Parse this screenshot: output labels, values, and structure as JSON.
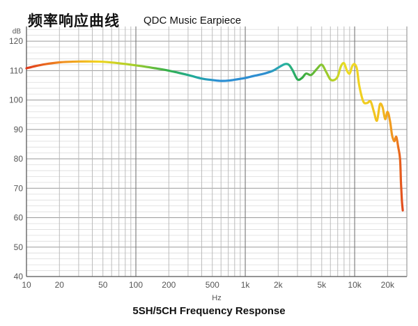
{
  "header": {
    "title_cn": "频率响应曲线",
    "title_en": "QDC Music Earpiece"
  },
  "footer": {
    "caption": "5SH/5CH Frequency Response"
  },
  "chart_data": {
    "type": "line",
    "title": "频率响应曲线",
    "subtitle": "QDC Music Earpiece",
    "caption": "5SH/5CH Frequency Response",
    "xlabel": "Hz",
    "ylabel": "dB",
    "x_scale": "log",
    "xlim": [
      10,
      30000
    ],
    "ylim": [
      40,
      125
    ],
    "grid": true,
    "x_ticks": [
      {
        "value": 10,
        "label": "10"
      },
      {
        "value": 20,
        "label": "20"
      },
      {
        "value": 50,
        "label": "50"
      },
      {
        "value": 100,
        "label": "100"
      },
      {
        "value": 200,
        "label": "200"
      },
      {
        "value": 500,
        "label": "500"
      },
      {
        "value": 1000,
        "label": "1k"
      },
      {
        "value": 2000,
        "label": "2k"
      },
      {
        "value": 5000,
        "label": "5k"
      },
      {
        "value": 10000,
        "label": "10k"
      },
      {
        "value": 20000,
        "label": "20k"
      }
    ],
    "y_ticks": [
      40,
      50,
      60,
      70,
      80,
      90,
      100,
      110,
      120
    ],
    "series": [
      {
        "x": [
          10,
          12,
          15,
          20,
          25,
          30,
          40,
          50,
          70,
          100,
          150,
          200,
          300,
          400,
          500,
          600,
          700,
          800,
          1000,
          1200,
          1500,
          1800,
          2000,
          2300,
          2500,
          2700,
          3000,
          3300,
          3600,
          4000,
          4500,
          5000,
          5500,
          6000,
          6500,
          7000,
          7500,
          8000,
          8500,
          9000,
          9500,
          10000,
          10500,
          11000,
          12000,
          13000,
          14000,
          15000,
          16000,
          17000,
          18000,
          19000,
          20000,
          21000,
          22000,
          23000,
          24000,
          25000,
          26000,
          26500,
          27000,
          27500
        ],
        "values": [
          110.8,
          111.5,
          112.2,
          112.8,
          113.0,
          113.1,
          113.1,
          113.0,
          112.5,
          111.8,
          110.8,
          110.0,
          108.5,
          107.3,
          106.8,
          106.5,
          106.6,
          106.9,
          107.5,
          108.2,
          109.0,
          110.0,
          111.0,
          112.2,
          112.0,
          110.2,
          107.0,
          107.5,
          109.0,
          108.5,
          110.5,
          112.0,
          109.5,
          107.0,
          106.8,
          108.0,
          111.5,
          112.5,
          110.0,
          109.0,
          111.5,
          112.2,
          110.5,
          105.0,
          99.5,
          99.0,
          99.5,
          96.0,
          93.0,
          98.5,
          97.5,
          93.5,
          96.0,
          93.0,
          88.0,
          86.0,
          87.5,
          84.0,
          80.0,
          72.0,
          66.0,
          62.5
        ]
      }
    ]
  }
}
